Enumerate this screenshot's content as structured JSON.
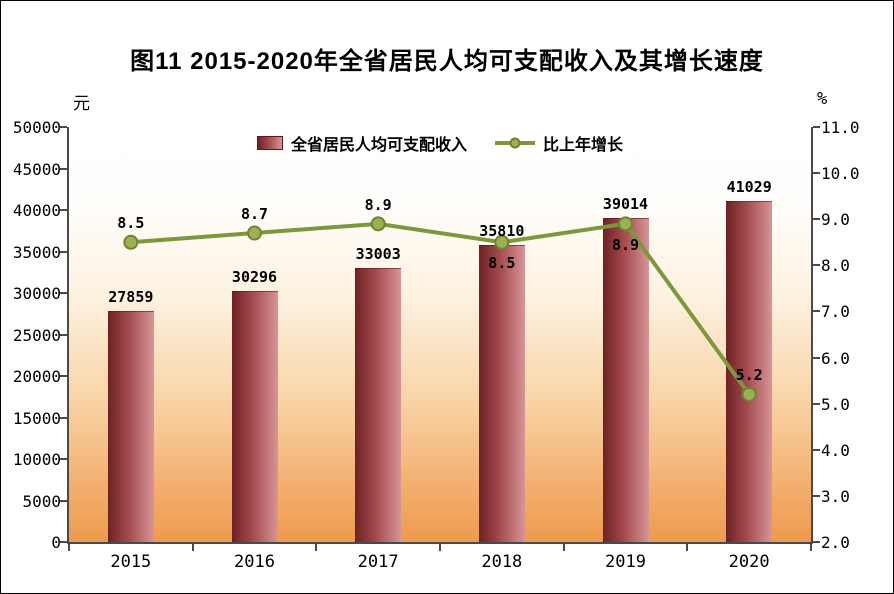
{
  "figure": {
    "title": "图11  2015-2020年全省居民人均可支配收入及其增长速度"
  },
  "chart_data": {
    "type": "bar",
    "subtype": "bar-line-combo",
    "title": "图11  2015-2020年全省居民人均可支配收入及其增长速度",
    "categories": [
      "2015",
      "2016",
      "2017",
      "2018",
      "2019",
      "2020"
    ],
    "series": [
      {
        "name": "全省居民人均可支配收入",
        "type": "bar",
        "axis": "left",
        "unit": "元",
        "values": [
          27859,
          30296,
          33003,
          35810,
          39014,
          41029
        ],
        "value_labels": [
          "27859",
          "30296",
          "33003",
          "35810",
          "39014",
          "41029"
        ],
        "colors": {
          "dark": "#6e2124",
          "mid": "#a34a4e",
          "light": "#d79597"
        }
      },
      {
        "name": "比上年增长",
        "type": "line",
        "axis": "right",
        "unit": "%",
        "values": [
          8.5,
          8.7,
          8.9,
          8.5,
          8.9,
          5.2
        ],
        "value_labels": [
          "8.5",
          "8.7",
          "8.9",
          "8.5",
          "8.9",
          "5.2"
        ],
        "label_positions": [
          "above",
          "above",
          "above",
          "below",
          "below",
          "above"
        ],
        "color": "#7d973c",
        "marker_fill": "#9db052",
        "marker_stroke": "#6d8434"
      }
    ],
    "left_axis": {
      "unit": "元",
      "min": 0,
      "max": 50000,
      "step": 5000,
      "tick_labels": [
        "50000",
        "45000",
        "40000",
        "35000",
        "30000",
        "25000",
        "20000",
        "15000",
        "10000",
        "5000",
        "0"
      ]
    },
    "right_axis": {
      "unit": "%",
      "min": 2.0,
      "max": 11.0,
      "step": 1.0,
      "tick_labels": [
        "11.0",
        "10.0",
        "9.0",
        "8.0",
        "7.0",
        "6.0",
        "5.0",
        "4.0",
        "3.0",
        "2.0"
      ]
    },
    "legend": {
      "position": "top-center",
      "items": [
        "全省居民人均可支配收入",
        "比上年增长"
      ]
    },
    "grid": false,
    "plot_background_gradient": [
      "#ffffff",
      "#fdf2e2",
      "#f9d5a8",
      "#ee9a4e"
    ]
  }
}
